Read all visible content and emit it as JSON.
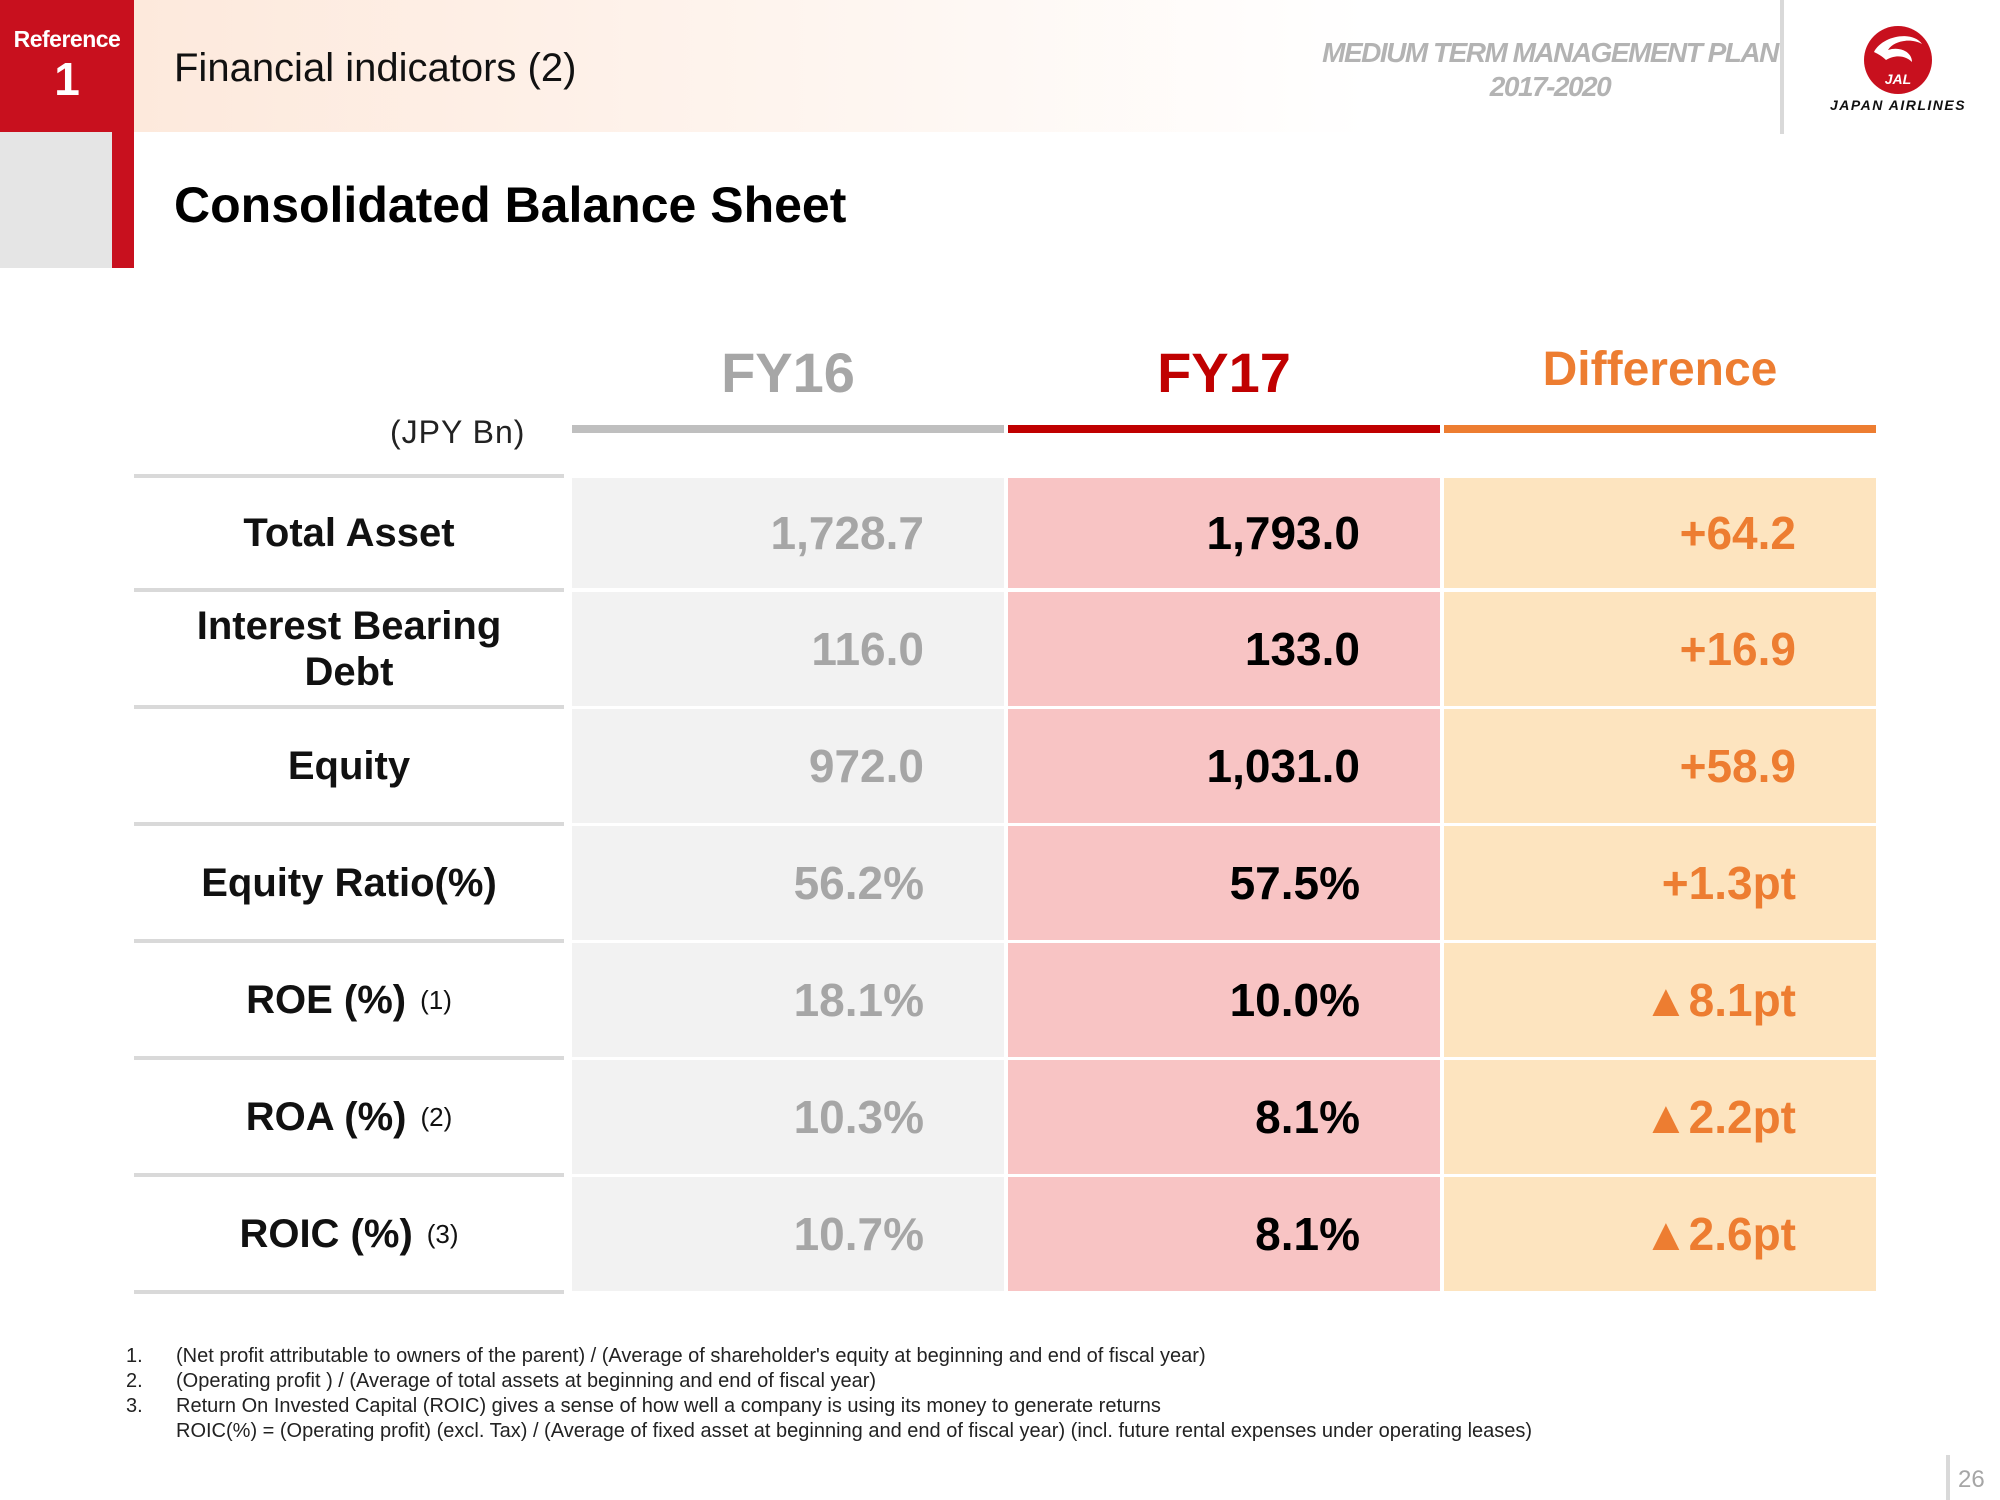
{
  "header": {
    "reference_label": "Reference",
    "reference_number": "1",
    "title": "Financial indicators (2)",
    "plan_line1": "MEDIUM TERM MANAGEMENT PLAN",
    "plan_line2": "2017-2020",
    "logo_mark": "JAL",
    "logo_text": "JAPAN AIRLINES"
  },
  "section_title": "Consolidated Balance Sheet",
  "table": {
    "unit": "(JPY Bn)",
    "columns": [
      "FY16",
      "FY17",
      "Difference"
    ],
    "column_colors": [
      "#a6a6a6",
      "#c00000",
      "#ed7d31"
    ],
    "rows": [
      {
        "label": "Total Asset",
        "note": "",
        "fy16": "1,728.7",
        "fy17": "1,793.0",
        "diff": "+64.2"
      },
      {
        "label": "Interest Bearing Debt",
        "note": "",
        "fy16": "116.0",
        "fy17": "133.0",
        "diff": "+16.9"
      },
      {
        "label": "Equity",
        "note": "",
        "fy16": "972.0",
        "fy17": "1,031.0",
        "diff": "+58.9"
      },
      {
        "label": "Equity Ratio(%)",
        "note": "",
        "fy16": "56.2%",
        "fy17": "57.5%",
        "diff": "+1.3pt"
      },
      {
        "label": "ROE (%)",
        "note": "(1)",
        "fy16": "18.1%",
        "fy17": "10.0%",
        "diff": "▲8.1pt"
      },
      {
        "label": "ROA (%)",
        "note": "(2)",
        "fy16": "10.3%",
        "fy17": "8.1%",
        "diff": "▲2.2pt"
      },
      {
        "label": "ROIC (%)",
        "note": "(3)",
        "fy16": "10.7%",
        "fy17": "8.1%",
        "diff": "▲2.6pt"
      }
    ]
  },
  "footnotes": [
    {
      "num": "1.",
      "text": "(Net profit attributable to owners of the parent) / (Average of shareholder's equity at beginning and end of fiscal year)"
    },
    {
      "num": "2.",
      "text": "(Operating profit ) / (Average of total assets at beginning and end of fiscal year)"
    },
    {
      "num": "3.",
      "text": "Return On Invested Capital (ROIC) gives a sense of how well a company is using its money to generate returns"
    },
    {
      "num": "",
      "text": "ROIC(%) = (Operating profit) (excl. Tax) / (Average of fixed asset at beginning and end of fiscal year) (incl. future rental expenses under operating leases)"
    }
  ],
  "page_number": "26"
}
